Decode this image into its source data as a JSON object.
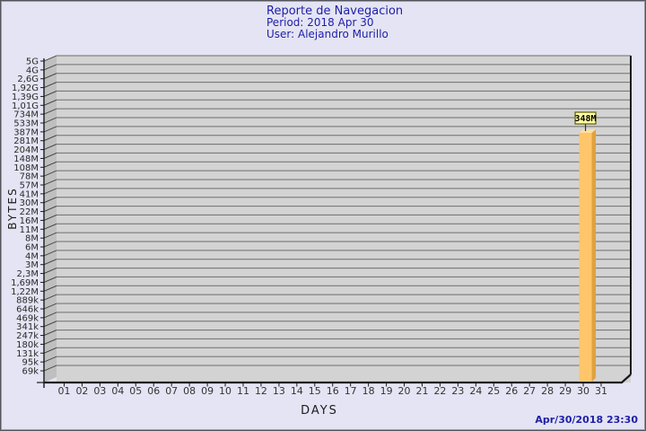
{
  "header": {
    "title": "Reporte de Navegacion",
    "period": "Period: 2018 Apr 30",
    "user": "User: Alejandro Murillo"
  },
  "footer": {
    "timestamp": "Apr/30/2018 23:30"
  },
  "colors": {
    "background": "#E4E4F4",
    "title_text": "#2020A8",
    "plot_fill": "#D3D3D3",
    "wall_fill": "#BFBFBF",
    "gridline": "#6E6E6E",
    "wall_diagonal": "#3A3A3A",
    "axis": "#1A1A1A",
    "tick_text": "#2A2A2A",
    "bar_face": "#FFC56B",
    "bar_side": "#DFA23F",
    "bar_top": "#FFDF9E",
    "value_box_fill": "#FFFF9E",
    "value_box_border": "#5A5A10",
    "timestamp_text": "#2020A8"
  },
  "chart_data": {
    "type": "bar",
    "title": "Reporte de Navegacion",
    "subtitle": [
      "Period: 2018 Apr 30",
      "User: Alejandro Murillo"
    ],
    "xlabel": "DAYS",
    "ylabel": "BYTES",
    "y_scale": "logarithmic",
    "grid": "horizontal",
    "legend": null,
    "y_tick_labels": [
      "5G",
      "4G",
      "2,6G",
      "1,92G",
      "1,39G",
      "1,01G",
      "734M",
      "533M",
      "387M",
      "281M",
      "204M",
      "148M",
      "108M",
      "78M",
      "57M",
      "41M",
      "30M",
      "22M",
      "16M",
      "11M",
      "8M",
      "6M",
      "4M",
      "3M",
      "2,3M",
      "1,69M",
      "1,22M",
      "889k",
      "646k",
      "469k",
      "341k",
      "247k",
      "180k",
      "131k",
      "95k",
      "69k"
    ],
    "x_tick_labels": [
      "01",
      "02",
      "03",
      "04",
      "05",
      "06",
      "07",
      "08",
      "09",
      "10",
      "11",
      "12",
      "13",
      "14",
      "15",
      "16",
      "17",
      "18",
      "19",
      "20",
      "21",
      "22",
      "23",
      "24",
      "25",
      "26",
      "27",
      "28",
      "29",
      "30",
      "31"
    ],
    "points": [
      {
        "x": "30",
        "label": "348M",
        "value_bytes": 348000000
      }
    ]
  }
}
